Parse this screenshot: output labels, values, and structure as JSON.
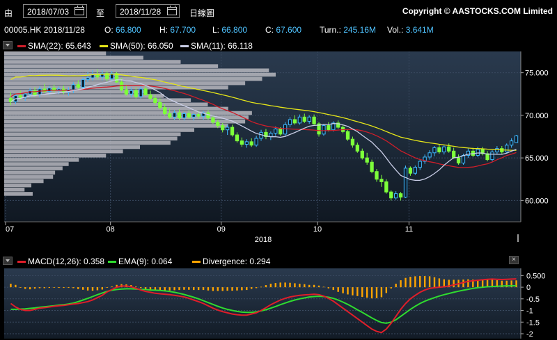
{
  "toolbar": {
    "from_label": "由",
    "start_date": "2018/07/03",
    "to_label": "至",
    "end_date": "2018/11/28",
    "chart_type": "日線圖",
    "copyright": "Copyright © AASTOCKS.COM Limited"
  },
  "quote": {
    "symbol_date": "00005.HK 2018/11/28",
    "open_label": "O:",
    "open": "66.800",
    "high_label": "H:",
    "high": "67.700",
    "low_label": "L:",
    "low": "66.800",
    "close_label": "C:",
    "close": "67.600",
    "turnover_label": "Turn.:",
    "turnover": "245.16M",
    "volume_label": "Vol.:",
    "volume": "3.641M"
  },
  "legend": {
    "sma22": "SMA(22): 65.643",
    "sma50": "SMA(50): 66.050",
    "sma11": "SMA(11): 66.118"
  },
  "macd_legend": {
    "macd": "MACD(12,26): 0.358",
    "ema": "EMA(9): 0.064",
    "divergence": "Divergence: 0.294",
    "close_symbol": "×"
  },
  "colors": {
    "up": "#3fb9ff",
    "down": "#7dff3a",
    "sma22": "#d01e2a",
    "sma50": "#e6e619",
    "sma11": "#c9cde6",
    "macd": "#e01e2a",
    "ema": "#2fdc2f",
    "divergence": "#ffa400",
    "volume_profile": "#b8b8c0"
  },
  "chart_data": [
    {
      "type": "candlestick",
      "x_tick_labels": [
        "07",
        "08",
        "09",
        "10",
        "11"
      ],
      "x_year_label": "2018",
      "ylim": [
        57.5,
        77.5
      ],
      "y_ticks": [
        60,
        65,
        70,
        75
      ],
      "y_tick_labels": [
        "60.000",
        "65.000",
        "70.000",
        "75.000"
      ],
      "candles": [
        {
          "o": 72.0,
          "h": 72.7,
          "l": 71.2,
          "c": 71.6
        },
        {
          "o": 71.6,
          "h": 72.6,
          "l": 71.3,
          "c": 72.3
        },
        {
          "o": 72.3,
          "h": 72.9,
          "l": 71.8,
          "c": 72.1
        },
        {
          "o": 72.1,
          "h": 72.7,
          "l": 71.7,
          "c": 72.5
        },
        {
          "o": 72.5,
          "h": 73.2,
          "l": 72.1,
          "c": 72.9
        },
        {
          "o": 72.9,
          "h": 73.3,
          "l": 72.2,
          "c": 72.4
        },
        {
          "o": 72.4,
          "h": 73.4,
          "l": 72.1,
          "c": 73.1
        },
        {
          "o": 73.1,
          "h": 73.7,
          "l": 72.6,
          "c": 72.8
        },
        {
          "o": 72.8,
          "h": 73.5,
          "l": 72.4,
          "c": 73.2
        },
        {
          "o": 73.2,
          "h": 73.6,
          "l": 72.6,
          "c": 72.9
        },
        {
          "o": 72.9,
          "h": 73.4,
          "l": 72.5,
          "c": 73.1
        },
        {
          "o": 73.1,
          "h": 73.5,
          "l": 72.5,
          "c": 72.7
        },
        {
          "o": 72.7,
          "h": 73.3,
          "l": 72.3,
          "c": 73.0
        },
        {
          "o": 73.0,
          "h": 73.9,
          "l": 72.6,
          "c": 73.6
        },
        {
          "o": 73.6,
          "h": 74.1,
          "l": 73.0,
          "c": 73.3
        },
        {
          "o": 73.3,
          "h": 74.5,
          "l": 73.0,
          "c": 74.2
        },
        {
          "o": 74.2,
          "h": 75.1,
          "l": 73.9,
          "c": 74.4
        },
        {
          "o": 74.4,
          "h": 75.3,
          "l": 74.1,
          "c": 74.8
        },
        {
          "o": 74.8,
          "h": 75.4,
          "l": 74.2,
          "c": 74.5
        },
        {
          "o": 74.5,
          "h": 75.3,
          "l": 74.1,
          "c": 74.9
        },
        {
          "o": 74.9,
          "h": 75.2,
          "l": 74.0,
          "c": 74.3
        },
        {
          "o": 74.3,
          "h": 75.2,
          "l": 74.0,
          "c": 74.9
        },
        {
          "o": 74.9,
          "h": 75.1,
          "l": 73.8,
          "c": 73.9
        },
        {
          "o": 73.9,
          "h": 74.4,
          "l": 72.8,
          "c": 73.0
        },
        {
          "o": 73.0,
          "h": 73.6,
          "l": 72.3,
          "c": 72.5
        },
        {
          "o": 72.5,
          "h": 73.3,
          "l": 72.1,
          "c": 72.9
        },
        {
          "o": 72.9,
          "h": 73.3,
          "l": 72.0,
          "c": 72.2
        },
        {
          "o": 72.2,
          "h": 73.4,
          "l": 72.0,
          "c": 73.1
        },
        {
          "o": 73.1,
          "h": 73.4,
          "l": 72.3,
          "c": 72.4
        },
        {
          "o": 72.4,
          "h": 72.9,
          "l": 71.8,
          "c": 72.0
        },
        {
          "o": 72.0,
          "h": 72.4,
          "l": 71.2,
          "c": 71.5
        },
        {
          "o": 71.5,
          "h": 72.0,
          "l": 70.7,
          "c": 70.9
        },
        {
          "o": 70.9,
          "h": 71.3,
          "l": 70.0,
          "c": 70.2
        },
        {
          "o": 70.2,
          "h": 70.8,
          "l": 69.6,
          "c": 69.8
        },
        {
          "o": 69.8,
          "h": 70.6,
          "l": 69.5,
          "c": 70.3
        },
        {
          "o": 70.3,
          "h": 70.7,
          "l": 69.5,
          "c": 69.7
        },
        {
          "o": 69.7,
          "h": 70.4,
          "l": 69.4,
          "c": 70.2
        },
        {
          "o": 70.2,
          "h": 70.6,
          "l": 69.6,
          "c": 69.8
        },
        {
          "o": 69.8,
          "h": 70.3,
          "l": 69.4,
          "c": 70.1
        },
        {
          "o": 70.1,
          "h": 70.5,
          "l": 69.6,
          "c": 69.9
        },
        {
          "o": 69.9,
          "h": 70.5,
          "l": 69.5,
          "c": 70.3
        },
        {
          "o": 70.3,
          "h": 70.6,
          "l": 69.5,
          "c": 69.7
        },
        {
          "o": 69.7,
          "h": 70.0,
          "l": 69.0,
          "c": 69.2
        },
        {
          "o": 69.2,
          "h": 69.5,
          "l": 68.5,
          "c": 68.8
        },
        {
          "o": 68.8,
          "h": 69.1,
          "l": 68.0,
          "c": 68.3
        },
        {
          "o": 68.3,
          "h": 68.9,
          "l": 67.7,
          "c": 68.6
        },
        {
          "o": 68.6,
          "h": 68.9,
          "l": 67.5,
          "c": 67.7
        },
        {
          "o": 67.7,
          "h": 68.0,
          "l": 66.8,
          "c": 67.0
        },
        {
          "o": 67.0,
          "h": 67.4,
          "l": 66.3,
          "c": 66.6
        },
        {
          "o": 66.6,
          "h": 67.2,
          "l": 66.2,
          "c": 66.9
        },
        {
          "o": 66.9,
          "h": 67.3,
          "l": 66.3,
          "c": 66.5
        },
        {
          "o": 66.5,
          "h": 67.6,
          "l": 66.3,
          "c": 67.3
        },
        {
          "o": 67.3,
          "h": 68.3,
          "l": 67.0,
          "c": 68.0
        },
        {
          "o": 68.0,
          "h": 68.4,
          "l": 67.2,
          "c": 67.5
        },
        {
          "o": 67.5,
          "h": 68.1,
          "l": 67.1,
          "c": 67.9
        },
        {
          "o": 67.9,
          "h": 68.7,
          "l": 67.6,
          "c": 68.4
        },
        {
          "o": 68.4,
          "h": 68.6,
          "l": 67.6,
          "c": 67.8
        },
        {
          "o": 67.8,
          "h": 69.2,
          "l": 67.6,
          "c": 68.9
        },
        {
          "o": 68.9,
          "h": 69.8,
          "l": 68.6,
          "c": 69.5
        },
        {
          "o": 69.5,
          "h": 70.0,
          "l": 68.9,
          "c": 69.1
        },
        {
          "o": 69.1,
          "h": 70.1,
          "l": 68.9,
          "c": 69.8
        },
        {
          "o": 69.8,
          "h": 70.2,
          "l": 69.1,
          "c": 69.3
        },
        {
          "o": 69.3,
          "h": 70.0,
          "l": 69.0,
          "c": 69.8
        },
        {
          "o": 69.8,
          "h": 70.1,
          "l": 68.9,
          "c": 69.0
        },
        {
          "o": 69.0,
          "h": 69.2,
          "l": 67.5,
          "c": 67.8
        },
        {
          "o": 67.8,
          "h": 69.0,
          "l": 67.6,
          "c": 68.8
        },
        {
          "o": 68.8,
          "h": 69.2,
          "l": 68.1,
          "c": 68.3
        },
        {
          "o": 68.3,
          "h": 69.3,
          "l": 68.1,
          "c": 69.1
        },
        {
          "o": 69.1,
          "h": 69.4,
          "l": 68.4,
          "c": 68.6
        },
        {
          "o": 68.6,
          "h": 68.9,
          "l": 67.9,
          "c": 68.1
        },
        {
          "o": 68.1,
          "h": 68.3,
          "l": 67.0,
          "c": 67.2
        },
        {
          "o": 67.2,
          "h": 67.5,
          "l": 66.2,
          "c": 66.5
        },
        {
          "o": 66.5,
          "h": 66.8,
          "l": 65.6,
          "c": 65.8
        },
        {
          "o": 65.8,
          "h": 66.1,
          "l": 64.8,
          "c": 65.0
        },
        {
          "o": 65.0,
          "h": 65.6,
          "l": 64.2,
          "c": 64.5
        },
        {
          "o": 64.5,
          "h": 64.8,
          "l": 63.2,
          "c": 63.4
        },
        {
          "o": 63.4,
          "h": 63.7,
          "l": 62.2,
          "c": 62.5
        },
        {
          "o": 62.5,
          "h": 63.0,
          "l": 61.6,
          "c": 62.2
        },
        {
          "o": 62.2,
          "h": 62.5,
          "l": 60.8,
          "c": 61.0
        },
        {
          "o": 61.0,
          "h": 61.2,
          "l": 60.0,
          "c": 60.3
        },
        {
          "o": 60.3,
          "h": 61.1,
          "l": 60.1,
          "c": 60.8
        },
        {
          "o": 60.8,
          "h": 61.0,
          "l": 60.0,
          "c": 60.4
        },
        {
          "o": 60.4,
          "h": 64.1,
          "l": 60.3,
          "c": 63.8
        },
        {
          "o": 63.8,
          "h": 64.0,
          "l": 62.9,
          "c": 63.2
        },
        {
          "o": 63.2,
          "h": 64.1,
          "l": 63.0,
          "c": 63.9
        },
        {
          "o": 63.9,
          "h": 64.8,
          "l": 63.6,
          "c": 64.6
        },
        {
          "o": 64.6,
          "h": 65.4,
          "l": 64.3,
          "c": 65.1
        },
        {
          "o": 65.1,
          "h": 65.9,
          "l": 64.8,
          "c": 65.6
        },
        {
          "o": 65.6,
          "h": 66.4,
          "l": 65.2,
          "c": 66.2
        },
        {
          "o": 66.2,
          "h": 66.6,
          "l": 65.5,
          "c": 65.7
        },
        {
          "o": 65.7,
          "h": 66.5,
          "l": 65.4,
          "c": 66.3
        },
        {
          "o": 66.3,
          "h": 66.7,
          "l": 65.6,
          "c": 65.8
        },
        {
          "o": 65.8,
          "h": 66.2,
          "l": 64.9,
          "c": 65.0
        },
        {
          "o": 65.0,
          "h": 65.4,
          "l": 64.2,
          "c": 64.4
        },
        {
          "o": 64.4,
          "h": 65.5,
          "l": 64.2,
          "c": 65.3
        },
        {
          "o": 65.3,
          "h": 66.1,
          "l": 65.0,
          "c": 65.8
        },
        {
          "o": 65.8,
          "h": 66.2,
          "l": 65.1,
          "c": 65.3
        },
        {
          "o": 65.3,
          "h": 66.3,
          "l": 65.1,
          "c": 66.0
        },
        {
          "o": 66.0,
          "h": 66.3,
          "l": 65.3,
          "c": 65.5
        },
        {
          "o": 65.5,
          "h": 65.8,
          "l": 64.6,
          "c": 64.8
        },
        {
          "o": 64.8,
          "h": 65.9,
          "l": 64.6,
          "c": 65.7
        },
        {
          "o": 65.7,
          "h": 66.4,
          "l": 65.4,
          "c": 66.1
        },
        {
          "o": 66.1,
          "h": 66.4,
          "l": 65.5,
          "c": 65.7
        },
        {
          "o": 65.7,
          "h": 66.7,
          "l": 65.5,
          "c": 66.5
        },
        {
          "o": 66.5,
          "h": 67.3,
          "l": 66.2,
          "c": 67.0
        },
        {
          "o": 66.8,
          "h": 67.7,
          "l": 66.8,
          "c": 67.6
        }
      ],
      "volume_profile": {
        "price_start": 60.5,
        "price_step": 0.5,
        "values": [
          42,
          30,
          40,
          58,
          72,
          75,
          86,
          95,
          110,
          150,
          175,
          200,
          245,
          255,
          260,
          280,
          330,
          355,
          360,
          365,
          330,
          300,
          275,
          235,
          210,
          330,
          355,
          380,
          400,
          390,
          315,
          260,
          205,
          150,
          110,
          75,
          45
        ]
      }
    },
    {
      "type": "macd",
      "ylim": [
        -2.15,
        0.75
      ],
      "y_ticks": [
        0.5,
        0,
        -0.5,
        -1,
        -1.5,
        -2
      ],
      "y_tick_labels": [
        "0.500",
        "0",
        "-0.5",
        "-1",
        "-1.5",
        "-2"
      ],
      "macd": [
        -0.7,
        -0.85,
        -0.95,
        -1.0,
        -1.0,
        -0.95,
        -0.9,
        -0.88,
        -0.85,
        -0.82,
        -0.8,
        -0.78,
        -0.75,
        -0.72,
        -0.7,
        -0.66,
        -0.62,
        -0.55,
        -0.45,
        -0.35,
        -0.2,
        -0.1,
        0.0,
        0.05,
        0.05,
        0.02,
        -0.05,
        -0.12,
        -0.18,
        -0.22,
        -0.26,
        -0.28,
        -0.3,
        -0.32,
        -0.35,
        -0.38,
        -0.42,
        -0.48,
        -0.55,
        -0.62,
        -0.7,
        -0.8,
        -0.9,
        -0.98,
        -1.05,
        -1.1,
        -1.15,
        -1.18,
        -1.2,
        -1.2,
        -1.15,
        -1.1,
        -1.0,
        -0.88,
        -0.75,
        -0.65,
        -0.55,
        -0.48,
        -0.42,
        -0.38,
        -0.35,
        -0.33,
        -0.32,
        -0.3,
        -0.32,
        -0.38,
        -0.48,
        -0.6,
        -0.75,
        -0.9,
        -1.05,
        -1.2,
        -1.35,
        -1.5,
        -1.65,
        -1.8,
        -1.9,
        -1.95,
        -1.8,
        -1.55,
        -1.25,
        -0.95,
        -0.7,
        -0.5,
        -0.35,
        -0.22,
        -0.12,
        -0.05,
        -0.02,
        0.0,
        0.02,
        0.05,
        0.1,
        0.15,
        0.2,
        0.25,
        0.28,
        0.3,
        0.32,
        0.34,
        0.35,
        0.34,
        0.33,
        0.34,
        0.35,
        0.358
      ],
      "ema": [
        -0.95,
        -0.95,
        -0.94,
        -0.93,
        -0.91,
        -0.89,
        -0.86,
        -0.84,
        -0.82,
        -0.8,
        -0.77,
        -0.75,
        -0.72,
        -0.68,
        -0.62,
        -0.55,
        -0.48,
        -0.4,
        -0.32,
        -0.25,
        -0.18,
        -0.13,
        -0.1,
        -0.08,
        -0.07,
        -0.07,
        -0.08,
        -0.09,
        -0.1,
        -0.12,
        -0.13,
        -0.14,
        -0.16,
        -0.18,
        -0.22,
        -0.26,
        -0.31,
        -0.37,
        -0.43,
        -0.5,
        -0.58,
        -0.66,
        -0.74,
        -0.82,
        -0.89,
        -0.95,
        -1.0,
        -1.04,
        -1.07,
        -1.08,
        -1.08,
        -1.06,
        -1.02,
        -0.97,
        -0.9,
        -0.83,
        -0.75,
        -0.68,
        -0.61,
        -0.55,
        -0.5,
        -0.46,
        -0.42,
        -0.4,
        -0.39,
        -0.4,
        -0.43,
        -0.48,
        -0.55,
        -0.64,
        -0.74,
        -0.85,
        -0.97,
        -1.08,
        -1.2,
        -1.32,
        -1.43,
        -1.52,
        -1.55,
        -1.5,
        -1.4,
        -1.25,
        -1.1,
        -0.95,
        -0.82,
        -0.7,
        -0.6,
        -0.52,
        -0.45,
        -0.38,
        -0.32,
        -0.27,
        -0.22,
        -0.17,
        -0.13,
        -0.09,
        -0.05,
        -0.02,
        0.0,
        0.02,
        0.03,
        0.04,
        0.05,
        0.06,
        0.06,
        0.064
      ],
      "divergence": [
        0.15,
        0.1,
        0.0,
        -0.07,
        -0.09,
        -0.06,
        -0.04,
        -0.04,
        -0.03,
        -0.02,
        -0.03,
        -0.03,
        -0.03,
        -0.04,
        -0.08,
        -0.11,
        -0.14,
        -0.15,
        -0.13,
        -0.1,
        -0.02,
        0.03,
        0.1,
        0.13,
        0.12,
        0.09,
        0.03,
        -0.03,
        -0.08,
        -0.1,
        -0.13,
        -0.14,
        -0.14,
        -0.14,
        -0.13,
        -0.12,
        -0.11,
        -0.11,
        -0.12,
        -0.12,
        -0.12,
        -0.14,
        -0.16,
        -0.16,
        -0.16,
        -0.15,
        -0.15,
        -0.14,
        -0.13,
        -0.12,
        -0.07,
        -0.04,
        0.02,
        0.09,
        0.15,
        0.18,
        0.2,
        0.2,
        0.19,
        0.17,
        0.15,
        0.13,
        0.1,
        0.1,
        0.07,
        0.02,
        -0.05,
        -0.12,
        -0.2,
        -0.26,
        -0.31,
        -0.35,
        -0.38,
        -0.42,
        -0.45,
        -0.48,
        -0.47,
        -0.43,
        -0.25,
        -0.05,
        0.15,
        0.3,
        0.4,
        0.45,
        0.47,
        0.48,
        0.48,
        0.47,
        0.43,
        0.38,
        0.34,
        0.32,
        0.32,
        0.32,
        0.33,
        0.34,
        0.33,
        0.32,
        0.32,
        0.32,
        0.32,
        0.3,
        0.28,
        0.28,
        0.29,
        0.294
      ]
    }
  ]
}
